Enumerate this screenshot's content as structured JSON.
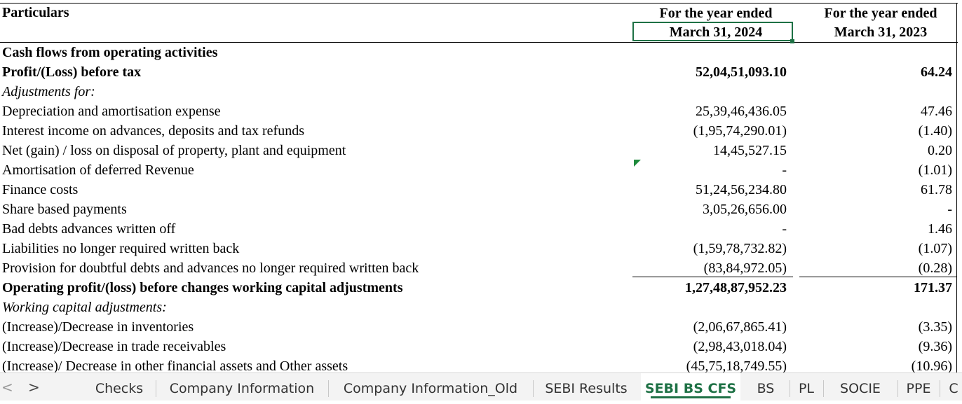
{
  "header": {
    "particulars": "Particulars",
    "col1_line1": "For the year ended",
    "col1_line2": "March 31, 2024",
    "col2_line1": "For the year ended",
    "col2_line2": "March 31, 2023"
  },
  "rows": [
    {
      "label": "Cash flows from operating activities",
      "v1": "",
      "v2": "",
      "style": "bold"
    },
    {
      "label": "Profit/(Loss) before tax",
      "v1": "52,04,51,093.10",
      "v2": "64.24",
      "style": "bold"
    },
    {
      "label": "Adjustments for:",
      "v1": "",
      "v2": "",
      "style": "italic"
    },
    {
      "label": "Depreciation and amortisation expense",
      "v1": "25,39,46,436.05",
      "v2": "47.46",
      "style": "normal"
    },
    {
      "label": "Interest income on advances, deposits and tax refunds",
      "v1": "(1,95,74,290.01)",
      "v2": "(1.40)",
      "style": "normal"
    },
    {
      "label": "Net (gain) / loss on disposal of property, plant and equipment",
      "v1": "14,45,527.15",
      "v2": "0.20",
      "style": "normal"
    },
    {
      "label": "Amortisation of deferred Revenue",
      "v1": "-",
      "v2": "(1.01)",
      "style": "normal"
    },
    {
      "label": "Finance costs",
      "v1": "51,24,56,234.80",
      "v2": "61.78",
      "style": "normal"
    },
    {
      "label": "Share based payments",
      "v1": "3,05,26,656.00",
      "v2": "-",
      "style": "normal"
    },
    {
      "label": "Bad debts advances written off",
      "v1": "-",
      "v2": "1.46",
      "style": "normal"
    },
    {
      "label": "Liabilities no longer required written back",
      "v1": "(1,59,78,732.82)",
      "v2": "(1.07)",
      "style": "normal"
    },
    {
      "label": "Provision for doubtful debts and advances no longer required written back",
      "v1": "(83,84,972.05)",
      "v2": "(0.28)",
      "style": "normal"
    },
    {
      "label": "Operating profit/(loss) before changes working capital adjustments",
      "v1": "1,27,48,87,952.23",
      "v2": "171.37",
      "style": "bold"
    },
    {
      "label": "Working capital adjustments:",
      "v1": "",
      "v2": "",
      "style": "italic"
    },
    {
      "label": "(Increase)/Decrease in inventories",
      "v1": "(2,06,67,865.41)",
      "v2": "(3.35)",
      "style": "normal"
    },
    {
      "label": "(Increase)/Decrease in trade receivables",
      "v1": "(2,98,43,018.04)",
      "v2": "(9.36)",
      "style": "normal"
    },
    {
      "label": "(Increase)/ Decrease in other financial assets and Other assets",
      "v1": "(45,75,18,749.55)",
      "v2": "(10.96)",
      "style": "normal"
    }
  ],
  "tabs": {
    "prev_label": "<",
    "next_label": ">",
    "sheets": [
      {
        "label": "Checks",
        "active": false
      },
      {
        "label": "Company Information",
        "active": false
      },
      {
        "label": "Company Information_Old",
        "active": false
      },
      {
        "label": "SEBI Results",
        "active": false
      },
      {
        "label": "SEBI BS CFS",
        "active": true
      },
      {
        "label": "BS",
        "active": false
      },
      {
        "label": "PL",
        "active": false
      },
      {
        "label": "SOCIE",
        "active": false
      },
      {
        "label": "PPE",
        "active": false
      },
      {
        "label": "C",
        "active": false
      }
    ]
  },
  "colors": {
    "accent": "#1e7145"
  }
}
